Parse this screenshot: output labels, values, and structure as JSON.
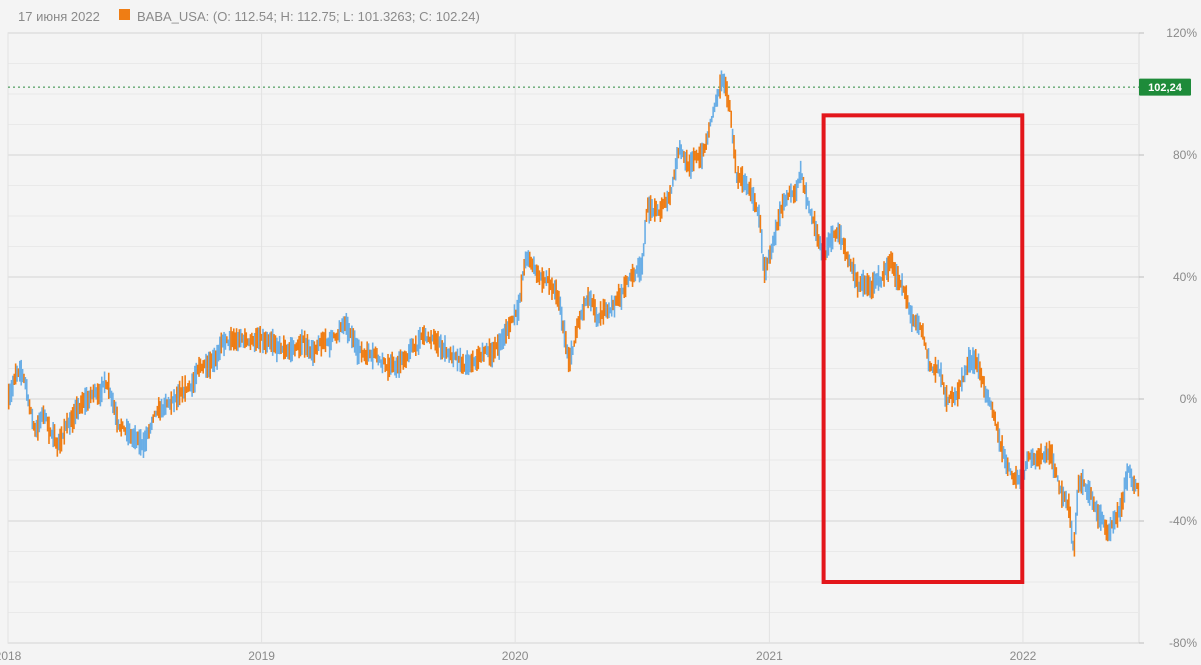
{
  "header": {
    "date": "17 июня 2022",
    "series_color": "#ef7d14",
    "series_info": "BABA_USA: (O: 112.54; H: 112.75; L: 101.3263; C: 102.24)"
  },
  "current_price_label": "102,24",
  "colors": {
    "up": "#6aaee6",
    "down": "#ef7d14",
    "price_line": "#2a8a3e",
    "price_badge": "#1e8b3a",
    "highlight_box": "#e3161b",
    "grid": "#d4d4d4",
    "background": "#f4f4f4"
  },
  "chart_data": {
    "type": "line",
    "series_name": "BABA_USA",
    "y_unit": "%",
    "ylim": [
      -80,
      120
    ],
    "xlim": [
      "2018-01-01",
      "2022-06-17"
    ],
    "y_ticks": [
      {
        "value": 120,
        "label": "120%"
      },
      {
        "value": 80,
        "label": "80%"
      },
      {
        "value": 40,
        "label": "40%"
      },
      {
        "value": 0,
        "label": "0%"
      },
      {
        "value": -40,
        "label": "-40%"
      },
      {
        "value": -80,
        "label": "-80%"
      }
    ],
    "x_ticks": [
      {
        "date": "2018-01-01",
        "label": "2018"
      },
      {
        "date": "2019-01-01",
        "label": "2019"
      },
      {
        "date": "2020-01-01",
        "label": "2020"
      },
      {
        "date": "2021-01-01",
        "label": "2021"
      },
      {
        "date": "2022-01-01",
        "label": "2022"
      }
    ],
    "reference_line_value": 102.24,
    "highlight_range": {
      "x_start": "2021-03-20",
      "x_end": "2021-12-31",
      "y_top": 93,
      "y_bottom": -60
    },
    "points": [
      [
        "2018-01-02",
        2
      ],
      [
        "2018-01-12",
        8
      ],
      [
        "2018-01-25",
        6
      ],
      [
        "2018-02-08",
        -10
      ],
      [
        "2018-02-22",
        -5
      ],
      [
        "2018-03-12",
        -15
      ],
      [
        "2018-04-02",
        -6
      ],
      [
        "2018-04-20",
        -2
      ],
      [
        "2018-05-08",
        2
      ],
      [
        "2018-05-25",
        6
      ],
      [
        "2018-06-08",
        -5
      ],
      [
        "2018-06-25",
        -12
      ],
      [
        "2018-07-12",
        -16
      ],
      [
        "2018-08-01",
        -7
      ],
      [
        "2018-08-20",
        -3
      ],
      [
        "2018-09-10",
        0
      ],
      [
        "2018-10-01",
        8
      ],
      [
        "2018-10-20",
        14
      ],
      [
        "2018-11-05",
        18
      ],
      [
        "2018-11-20",
        18
      ],
      [
        "2018-12-10",
        19
      ],
      [
        "2018-12-24",
        20
      ],
      [
        "2019-01-08",
        17
      ],
      [
        "2019-01-25",
        15
      ],
      [
        "2019-02-12",
        16
      ],
      [
        "2019-03-01",
        18
      ],
      [
        "2019-03-20",
        16
      ],
      [
        "2019-04-10",
        19
      ],
      [
        "2019-04-30",
        24
      ],
      [
        "2019-05-10",
        19
      ],
      [
        "2019-05-28",
        15
      ],
      [
        "2019-06-12",
        17
      ],
      [
        "2019-06-28",
        12
      ],
      [
        "2019-07-15",
        10
      ],
      [
        "2019-08-05",
        16
      ],
      [
        "2019-08-22",
        20
      ],
      [
        "2019-09-10",
        18
      ],
      [
        "2019-09-30",
        15
      ],
      [
        "2019-10-15",
        10
      ],
      [
        "2019-11-01",
        10
      ],
      [
        "2019-11-18",
        15
      ],
      [
        "2019-12-02",
        16
      ],
      [
        "2019-12-20",
        22
      ],
      [
        "2020-01-07",
        32
      ],
      [
        "2020-01-16",
        46
      ],
      [
        "2020-02-03",
        41
      ],
      [
        "2020-02-20",
        38
      ],
      [
        "2020-03-05",
        30
      ],
      [
        "2020-03-19",
        10
      ],
      [
        "2020-04-01",
        24
      ],
      [
        "2020-04-15",
        32
      ],
      [
        "2020-04-30",
        24
      ],
      [
        "2020-05-15",
        30
      ],
      [
        "2020-06-01",
        34
      ],
      [
        "2020-06-15",
        40
      ],
      [
        "2020-07-01",
        44
      ],
      [
        "2020-07-10",
        64
      ],
      [
        "2020-07-25",
        60
      ],
      [
        "2020-08-10",
        66
      ],
      [
        "2020-08-25",
        84
      ],
      [
        "2020-09-10",
        76
      ],
      [
        "2020-09-30",
        82
      ],
      [
        "2020-10-15",
        96
      ],
      [
        "2020-10-27",
        103
      ],
      [
        "2020-11-05",
        96
      ],
      [
        "2020-11-15",
        74
      ],
      [
        "2020-11-30",
        70
      ],
      [
        "2020-12-10",
        64
      ],
      [
        "2020-12-20",
        56
      ],
      [
        "2020-12-24",
        40
      ],
      [
        "2021-01-05",
        50
      ],
      [
        "2021-01-20",
        60
      ],
      [
        "2021-02-05",
        68
      ],
      [
        "2021-02-15",
        74
      ],
      [
        "2021-03-01",
        58
      ],
      [
        "2021-03-20",
        45
      ],
      [
        "2021-04-01",
        54
      ],
      [
        "2021-04-10",
        54
      ],
      [
        "2021-04-25",
        46
      ],
      [
        "2021-05-10",
        38
      ],
      [
        "2021-05-25",
        36
      ],
      [
        "2021-06-10",
        38
      ],
      [
        "2021-06-25",
        46
      ],
      [
        "2021-07-12",
        36
      ],
      [
        "2021-07-28",
        24
      ],
      [
        "2021-08-10",
        20
      ],
      [
        "2021-08-20",
        10
      ],
      [
        "2021-09-01",
        10
      ],
      [
        "2021-09-15",
        -2
      ],
      [
        "2021-10-01",
        4
      ],
      [
        "2021-10-15",
        12
      ],
      [
        "2021-10-25",
        14
      ],
      [
        "2021-11-05",
        6
      ],
      [
        "2021-11-18",
        -6
      ],
      [
        "2021-12-01",
        -16
      ],
      [
        "2021-12-15",
        -24
      ],
      [
        "2021-12-31",
        -26
      ],
      [
        "2022-01-10",
        -16
      ],
      [
        "2022-01-25",
        -20
      ],
      [
        "2022-02-10",
        -16
      ],
      [
        "2022-02-22",
        -28
      ],
      [
        "2022-03-08",
        -36
      ],
      [
        "2022-03-15",
        -50
      ],
      [
        "2022-03-22",
        -28
      ],
      [
        "2022-04-05",
        -30
      ],
      [
        "2022-04-20",
        -38
      ],
      [
        "2022-05-05",
        -44
      ],
      [
        "2022-05-20",
        -40
      ],
      [
        "2022-06-02",
        -24
      ],
      [
        "2022-06-17",
        -32
      ]
    ]
  }
}
